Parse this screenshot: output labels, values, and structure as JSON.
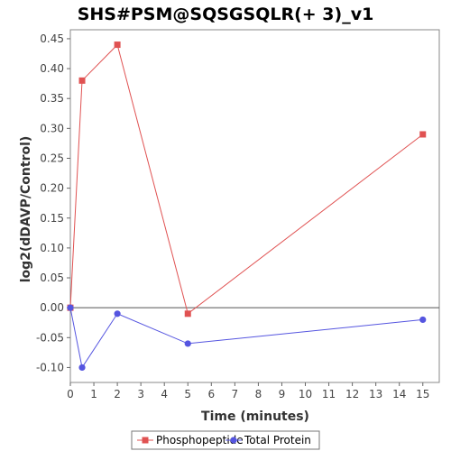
{
  "chart_data": {
    "type": "line",
    "title": "SHS#PSM@SQSGSQLR(+ 3)_v1",
    "xlabel": "Time (minutes)",
    "ylabel": "log2(dDAVP/Control)",
    "xlim": [
      0,
      15.7
    ],
    "ylim": [
      -0.125,
      0.465
    ],
    "xticks": [
      0,
      1,
      2,
      3,
      4,
      5,
      6,
      7,
      8,
      9,
      10,
      11,
      12,
      13,
      14,
      15
    ],
    "yticks": [
      -0.1,
      -0.05,
      0.0,
      0.05,
      0.1,
      0.15,
      0.2,
      0.25,
      0.3,
      0.35,
      0.4,
      0.45
    ],
    "ytick_labels": [
      "-0.10",
      "-0.05",
      "0.00",
      "0.05",
      "0.10",
      "0.15",
      "0.20",
      "0.25",
      "0.30",
      "0.35",
      "0.40",
      "0.45"
    ],
    "zero_line": true,
    "grid": false,
    "legend_position": "bottom",
    "series": [
      {
        "name": "Phosphopeptide",
        "color": "#e05252",
        "marker": "square",
        "x": [
          0,
          0.5,
          2,
          5,
          15
        ],
        "y": [
          0.0,
          0.38,
          0.44,
          -0.01,
          0.29
        ]
      },
      {
        "name": "Total Protein",
        "color": "#5555e0",
        "marker": "circle",
        "x": [
          0,
          0.5,
          2,
          5,
          15
        ],
        "y": [
          0.0,
          -0.1,
          -0.01,
          -0.06,
          -0.02
        ]
      }
    ]
  }
}
